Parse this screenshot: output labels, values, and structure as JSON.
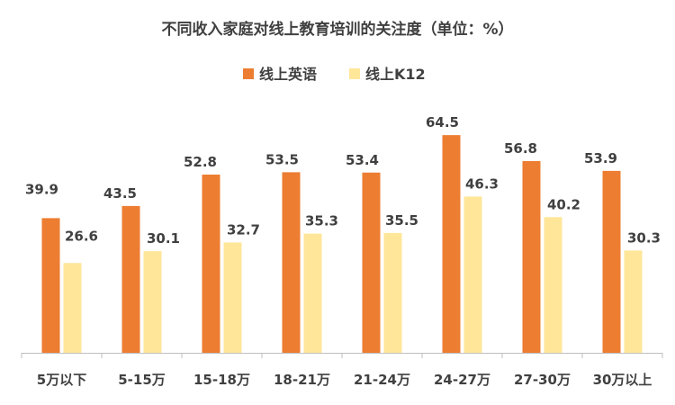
{
  "chart_data": {
    "type": "bar",
    "title": "不同收入家庭对线上教育培训的关注度（单位：%）",
    "xlabel": "",
    "ylabel": "",
    "ylim": [
      0,
      70
    ],
    "grid": false,
    "legend_position": "top",
    "categories": [
      "5万以下",
      "5-15万",
      "15-18万",
      "18-21万",
      "21-24万",
      "24-27万",
      "27-30万",
      "30万以上"
    ],
    "series": [
      {
        "name": "线上英语",
        "color": "#ED7D31",
        "values": [
          39.9,
          43.5,
          52.8,
          53.5,
          53.4,
          64.5,
          56.8,
          53.9
        ]
      },
      {
        "name": "线上K12",
        "color": "#FFE699",
        "values": [
          26.6,
          30.1,
          32.7,
          35.3,
          35.5,
          46.3,
          40.2,
          30.3
        ]
      }
    ]
  }
}
